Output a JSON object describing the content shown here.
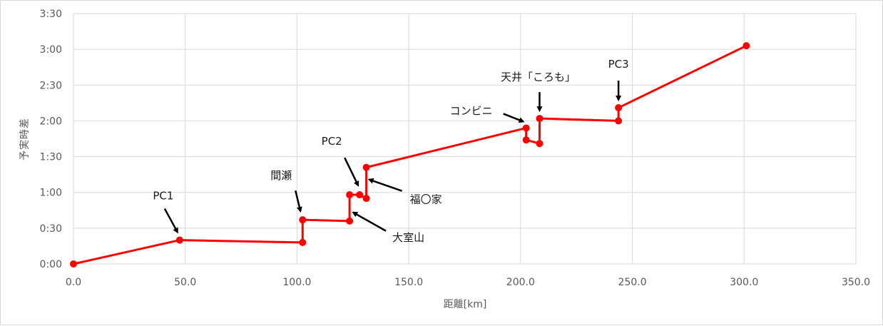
{
  "chart_data": {
    "type": "line",
    "xlabel": "距離[km]",
    "ylabel": "予実時差",
    "xlim": [
      0,
      350
    ],
    "ylim_minutes": [
      0,
      210
    ],
    "x_ticks": [
      "0.0",
      "50.0",
      "100.0",
      "150.0",
      "200.0",
      "250.0",
      "300.0",
      "350.0"
    ],
    "y_ticks": [
      "0:00",
      "0:30",
      "1:00",
      "1:30",
      "2:00",
      "2:30",
      "3:00",
      "3:30"
    ],
    "grid": true,
    "legend": "none",
    "series_color": "#ff0000",
    "series": [
      {
        "points": [
          {
            "x": 0.0,
            "y": "0:00"
          },
          {
            "x": 47.5,
            "y": "0:20"
          },
          {
            "x": 102.5,
            "y": "0:18"
          },
          {
            "x": 102.5,
            "y": "0:37"
          },
          {
            "x": 123.5,
            "y": "0:36"
          },
          {
            "x": 123.5,
            "y": "0:58"
          },
          {
            "x": 128.0,
            "y": "0:58"
          },
          {
            "x": 131.0,
            "y": "0:55"
          },
          {
            "x": 131.0,
            "y": "1:21"
          },
          {
            "x": 202.5,
            "y": "1:54"
          },
          {
            "x": 202.5,
            "y": "1:44"
          },
          {
            "x": 208.5,
            "y": "1:41"
          },
          {
            "x": 208.5,
            "y": "2:02"
          },
          {
            "x": 243.8,
            "y": "2:00"
          },
          {
            "x": 243.8,
            "y": "2:11"
          },
          {
            "x": 301.0,
            "y": "3:03"
          }
        ]
      }
    ],
    "annotations": [
      {
        "text": "PC1",
        "x": 47.5,
        "y": "0:20"
      },
      {
        "text": "間瀬",
        "x": 102.5,
        "y": "0:37"
      },
      {
        "text": "PC2",
        "x": 128.0,
        "y": "0:58"
      },
      {
        "text": "大室山",
        "x": 123.5,
        "y": "0:48"
      },
      {
        "text": "福〇家",
        "x": 131.0,
        "y": "1:09"
      },
      {
        "text": "コンビニ",
        "x": 202.5,
        "y": "1:54"
      },
      {
        "text": "天井「ころも」",
        "x": 208.5,
        "y": "2:02"
      },
      {
        "text": "PC3",
        "x": 243.8,
        "y": "2:11"
      }
    ]
  }
}
